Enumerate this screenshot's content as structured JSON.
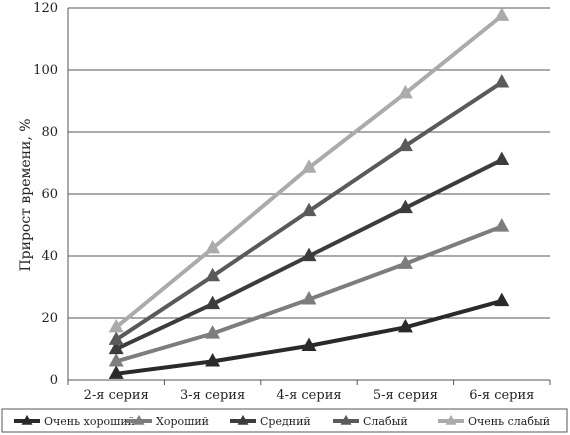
{
  "chart_data": {
    "type": "line",
    "title": "",
    "xlabel": "",
    "ylabel": "Прирост времени, %",
    "categories": [
      "2-я серия",
      "3-я серия",
      "4-я серия",
      "5-я серия",
      "6-я серия"
    ],
    "ylim": [
      0,
      120
    ],
    "yticks": [
      "0",
      "20",
      "40",
      "60",
      "80",
      "100",
      "120"
    ],
    "grid": "horizontal",
    "legend_position": "bottom",
    "series": [
      {
        "name": "Очень хороший",
        "color": "#2a2a2a",
        "values": [
          2,
          6,
          11,
          17,
          25.5
        ]
      },
      {
        "name": "Хороший",
        "color": "#7d7d7d",
        "values": [
          6,
          15,
          26,
          37.5,
          49.5
        ]
      },
      {
        "name": "Средний",
        "color": "#3c3c3c",
        "values": [
          10,
          24.5,
          40,
          55.5,
          71
        ]
      },
      {
        "name": "Слабый",
        "color": "#5a5a5a",
        "values": [
          13,
          33.5,
          54.5,
          75.5,
          96
        ]
      },
      {
        "name": "Очень слабый",
        "color": "#ababab",
        "values": [
          17,
          42.5,
          68.5,
          92.5,
          117.5
        ]
      }
    ]
  }
}
